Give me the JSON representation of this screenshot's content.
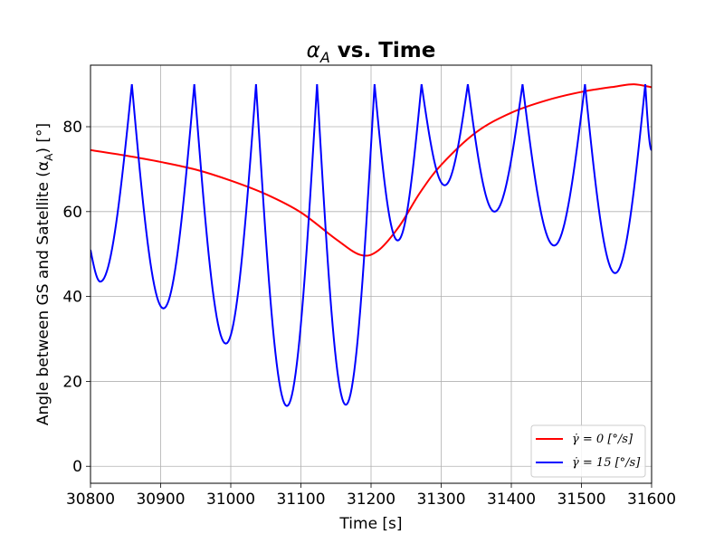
{
  "chart_data": {
    "type": "line",
    "title": "α_A vs. Time",
    "xlabel": "Time [s]",
    "ylabel": "Angle between GS and Satellite (α_A) [°]",
    "xlim": [
      30800,
      31600
    ],
    "ylim": [
      -4,
      94.5
    ],
    "xticks": [
      "30800",
      "30900",
      "31000",
      "31100",
      "31200",
      "31300",
      "31400",
      "31500",
      "31600"
    ],
    "yticks": [
      "0",
      "20",
      "40",
      "60",
      "80"
    ],
    "grid": true,
    "legend_position": "bottom-right",
    "series": [
      {
        "name": "γ̇ = 0 [°/s]",
        "color": "#ff0000",
        "x": [
          30800,
          30850,
          30900,
          30950,
          31000,
          31050,
          31100,
          31150,
          31185,
          31210,
          31240,
          31270,
          31300,
          31350,
          31400,
          31450,
          31500,
          31550,
          31575,
          31600
        ],
        "y": [
          74.5,
          73.2,
          71.7,
          69.9,
          67.3,
          64.1,
          59.8,
          53.5,
          49.8,
          50.8,
          56.5,
          64.5,
          71.0,
          78.7,
          83.3,
          86.2,
          88.2,
          89.5,
          90.0,
          89.3
        ]
      },
      {
        "name": "γ̇ = 15 [°/s]",
        "color": "#0000ff",
        "x": [
          30800,
          30814,
          30859,
          30904,
          30948,
          30993,
          31036,
          31080,
          31123,
          31164,
          31205,
          31238,
          31272,
          31305,
          31338,
          31376,
          31416,
          31461,
          31505,
          31548,
          31591,
          31600
        ],
        "y": [
          51.0,
          43.5,
          90.0,
          37.2,
          90.0,
          28.9,
          90.0,
          14.2,
          90.0,
          14.5,
          90.0,
          53.2,
          90.0,
          66.2,
          90.0,
          60.0,
          90.0,
          52.0,
          90.0,
          45.5,
          90.0,
          74.5
        ]
      }
    ]
  }
}
